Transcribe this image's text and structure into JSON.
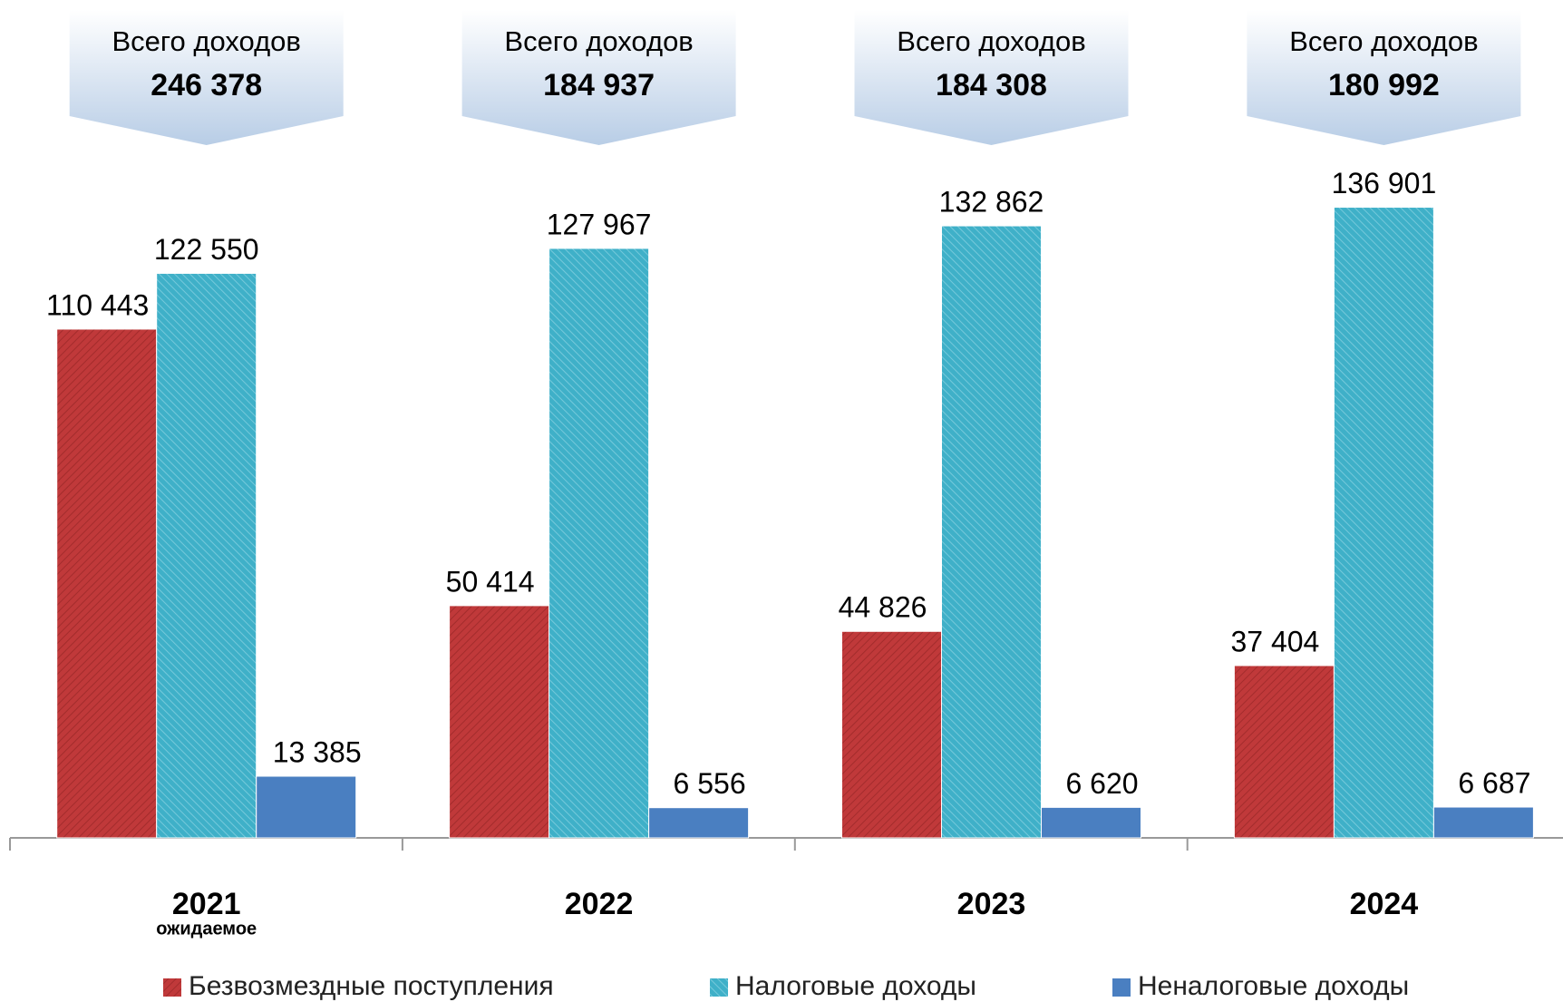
{
  "chart_data": {
    "type": "bar",
    "categories": [
      "2021",
      "2022",
      "2023",
      "2024"
    ],
    "annotation": "ожидаемое",
    "total_title": "Всего доходов",
    "totals": [
      246378,
      184937,
      184308,
      180992
    ],
    "total_labels": [
      "246 378",
      "184 937",
      "184 308",
      "180 992"
    ],
    "series": [
      {
        "name": "Безвозмездные поступления",
        "color": "#c0393a",
        "values": [
          110443,
          50414,
          44826,
          37404
        ],
        "value_labels": [
          "110 443",
          "50 414",
          "44 826",
          "37 404"
        ]
      },
      {
        "name": "Налоговые доходы",
        "color": "#3fb0c8",
        "values": [
          122550,
          127967,
          132862,
          136901
        ],
        "value_labels": [
          "122 550",
          "127 967",
          "132 862",
          "136 901"
        ]
      },
      {
        "name": "Неналоговые доходы",
        "color": "#4a7fc1",
        "values": [
          13385,
          6556,
          6620,
          6687
        ],
        "value_labels": [
          "13 385",
          "6 556",
          "6 620",
          "6 687"
        ]
      }
    ],
    "ylim": [
      0,
      150000
    ]
  }
}
